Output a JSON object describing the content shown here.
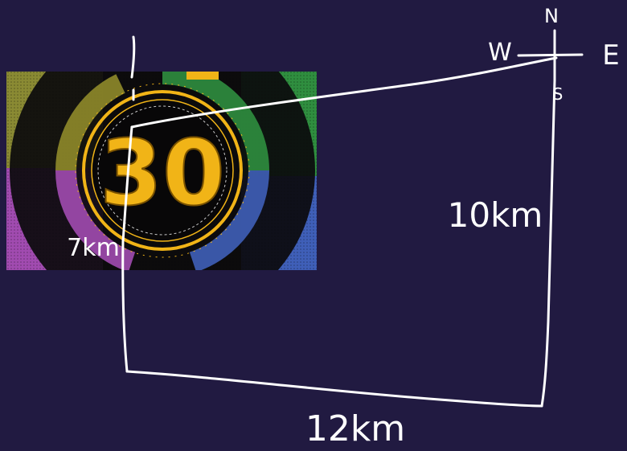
{
  "labels": {
    "north": "N",
    "south": "S",
    "east": "E",
    "west": "W",
    "dist_left": "7km",
    "dist_right": "10km",
    "dist_bottom": "12km"
  },
  "timer": {
    "value": "30",
    "colors": {
      "gold": "#f1b417",
      "dark": "#0b0a0c",
      "green": "#2f8e3f",
      "blue": "#3f5fb8",
      "purple": "#a14bb0",
      "olive": "#8f8a2a"
    }
  },
  "colors": {
    "background": "#211a41",
    "ink": "#ffffff"
  }
}
